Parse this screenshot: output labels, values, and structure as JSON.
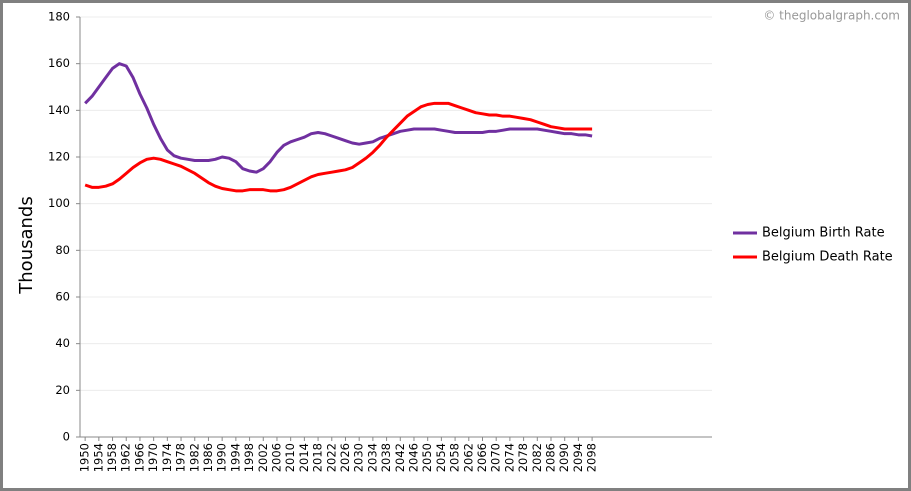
{
  "chart_data": {
    "type": "line",
    "watermark": "© theglobalgraph.com",
    "y_label": "Thousands",
    "x": [
      1950,
      1952,
      1954,
      1956,
      1958,
      1960,
      1962,
      1964,
      1966,
      1968,
      1970,
      1972,
      1974,
      1976,
      1978,
      1980,
      1982,
      1984,
      1986,
      1988,
      1990,
      1992,
      1994,
      1996,
      1998,
      2000,
      2002,
      2004,
      2006,
      2008,
      2010,
      2012,
      2014,
      2016,
      2018,
      2020,
      2022,
      2024,
      2026,
      2028,
      2030,
      2032,
      2034,
      2036,
      2038,
      2040,
      2042,
      2044,
      2046,
      2048,
      2050,
      2052,
      2054,
      2056,
      2058,
      2060,
      2062,
      2064,
      2066,
      2068,
      2070,
      2072,
      2074,
      2076,
      2078,
      2080,
      2082,
      2084,
      2086,
      2088,
      2090,
      2092,
      2094,
      2096,
      2098
    ],
    "series": [
      {
        "name": "Belgium Birth Rate",
        "color": "#7030a0",
        "values": [
          143,
          146,
          150,
          154,
          158,
          160,
          159,
          154,
          147,
          141,
          134,
          128,
          123,
          120.5,
          119.5,
          119,
          118.5,
          118.5,
          118.5,
          119,
          120,
          119.5,
          118,
          115,
          114,
          113.5,
          115,
          118,
          122,
          125,
          126.5,
          127.5,
          128.5,
          130,
          130.5,
          130,
          129,
          128,
          127,
          126,
          125.5,
          126,
          126.5,
          128,
          129,
          130,
          131,
          131.5,
          132,
          132,
          132,
          132,
          131.5,
          131,
          130.5,
          130.5,
          130.5,
          130.5,
          130.5,
          131,
          131,
          131.5,
          132,
          132,
          132,
          132,
          132,
          131.5,
          131,
          130.5,
          130,
          130,
          129.5,
          129.5,
          129
        ]
      },
      {
        "name": "Belgium Death Rate",
        "color": "#ff0000",
        "values": [
          108,
          107,
          107,
          107.5,
          108.5,
          110.5,
          113,
          115.5,
          117.5,
          119,
          119.5,
          119,
          118,
          117,
          116,
          114.5,
          113,
          111,
          109,
          107.5,
          106.5,
          106,
          105.5,
          105.5,
          106,
          106,
          106,
          105.5,
          105.5,
          106,
          107,
          108.5,
          110,
          111.5,
          112.5,
          113,
          113.5,
          114,
          114.5,
          115.5,
          117.5,
          119.5,
          122,
          125,
          128.5,
          131.5,
          134.5,
          137.5,
          139.5,
          141.5,
          142.5,
          143,
          143,
          143,
          142,
          141,
          140,
          139,
          138.5,
          138,
          138,
          137.5,
          137.5,
          137,
          136.5,
          136,
          135,
          134,
          133,
          132.5,
          132,
          132,
          132,
          132,
          132
        ]
      }
    ],
    "xlim": [
      1948.5,
      2133
    ],
    "xticks": [
      1950,
      1954,
      1958,
      1962,
      1966,
      1970,
      1974,
      1978,
      1982,
      1986,
      1990,
      1994,
      1998,
      2002,
      2006,
      2010,
      2014,
      2018,
      2022,
      2026,
      2030,
      2034,
      2038,
      2042,
      2046,
      2050,
      2054,
      2058,
      2062,
      2066,
      2070,
      2074,
      2078,
      2082,
      2086,
      2090,
      2094,
      2098
    ],
    "ylim": [
      0,
      180
    ],
    "yticks": [
      0,
      20,
      40,
      60,
      80,
      100,
      120,
      140,
      160,
      180
    ],
    "grid": true
  }
}
